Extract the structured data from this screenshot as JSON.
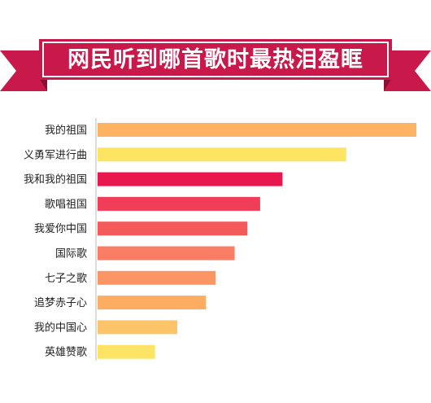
{
  "banner": {
    "title": "网民听到哪首歌时最热泪盈眶",
    "ribbon_color": "#c9184a",
    "fold_color": "#8b0f33"
  },
  "chart_data": {
    "type": "bar",
    "orientation": "horizontal",
    "title": "网民听到哪首歌时最热泪盈眶",
    "categories": [
      "我的祖国",
      "义勇军进行曲",
      "我和我的祖国",
      "歌唱祖国",
      "我爱你中国",
      "国际歌",
      "七子之歌",
      "追梦赤子心",
      "我的中国心",
      "英雄赞歌"
    ],
    "values": [
      100,
      78,
      58,
      51,
      47,
      43,
      37,
      34,
      25,
      18
    ],
    "colors": [
      "#fdb462",
      "#fde463",
      "#e8174e",
      "#f03e58",
      "#f55a5a",
      "#f97d65",
      "#fb9563",
      "#fdad62",
      "#fdc46a",
      "#fde465"
    ],
    "xlim": [
      0,
      100
    ],
    "grid": false,
    "legend": "none"
  }
}
